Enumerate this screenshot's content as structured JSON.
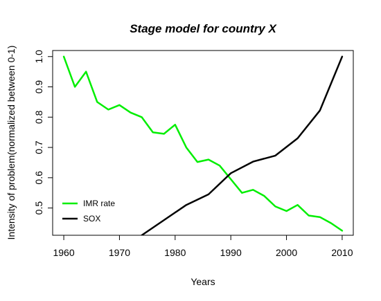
{
  "chart_data": {
    "type": "line",
    "title": "Stage model for country X",
    "xlabel": "Years",
    "ylabel": "Intensity of problem(normalized between 0-1)",
    "xlim": [
      1958,
      2012
    ],
    "ylim": [
      0.41,
      1.02
    ],
    "x_ticks": [
      1960,
      1970,
      1980,
      1990,
      2000,
      2010
    ],
    "y_ticks": [
      0.5,
      0.6,
      0.7,
      0.8,
      0.9,
      1.0
    ],
    "y_tick_labels": [
      "0.5",
      "0.6",
      "0.7",
      "0.8",
      "0.9",
      "1.0"
    ],
    "grid": false,
    "legend_position": "bottom-left",
    "series": [
      {
        "name": "IMR rate",
        "color": "#00ee00",
        "x": [
          1960,
          1962,
          1964,
          1966,
          1968,
          1970,
          1972,
          1974,
          1976,
          1978,
          1980,
          1982,
          1984,
          1986,
          1988,
          1990,
          1992,
          1994,
          1996,
          1998,
          2000,
          2002,
          2004,
          2006,
          2008,
          2010
        ],
        "y": [
          1.0,
          0.9,
          0.95,
          0.85,
          0.825,
          0.84,
          0.815,
          0.8,
          0.75,
          0.745,
          0.775,
          0.7,
          0.652,
          0.66,
          0.64,
          0.595,
          0.55,
          0.56,
          0.54,
          0.505,
          0.49,
          0.51,
          0.475,
          0.47,
          0.45,
          0.425
        ]
      },
      {
        "name": "SOX",
        "color": "#000000",
        "x": [
          1974,
          1978,
          1982,
          1986,
          1990,
          1994,
          1998,
          2002,
          2006,
          2010
        ],
        "y": [
          0.41,
          0.46,
          0.51,
          0.545,
          0.615,
          0.653,
          0.673,
          0.73,
          0.822,
          1.0
        ]
      }
    ]
  }
}
